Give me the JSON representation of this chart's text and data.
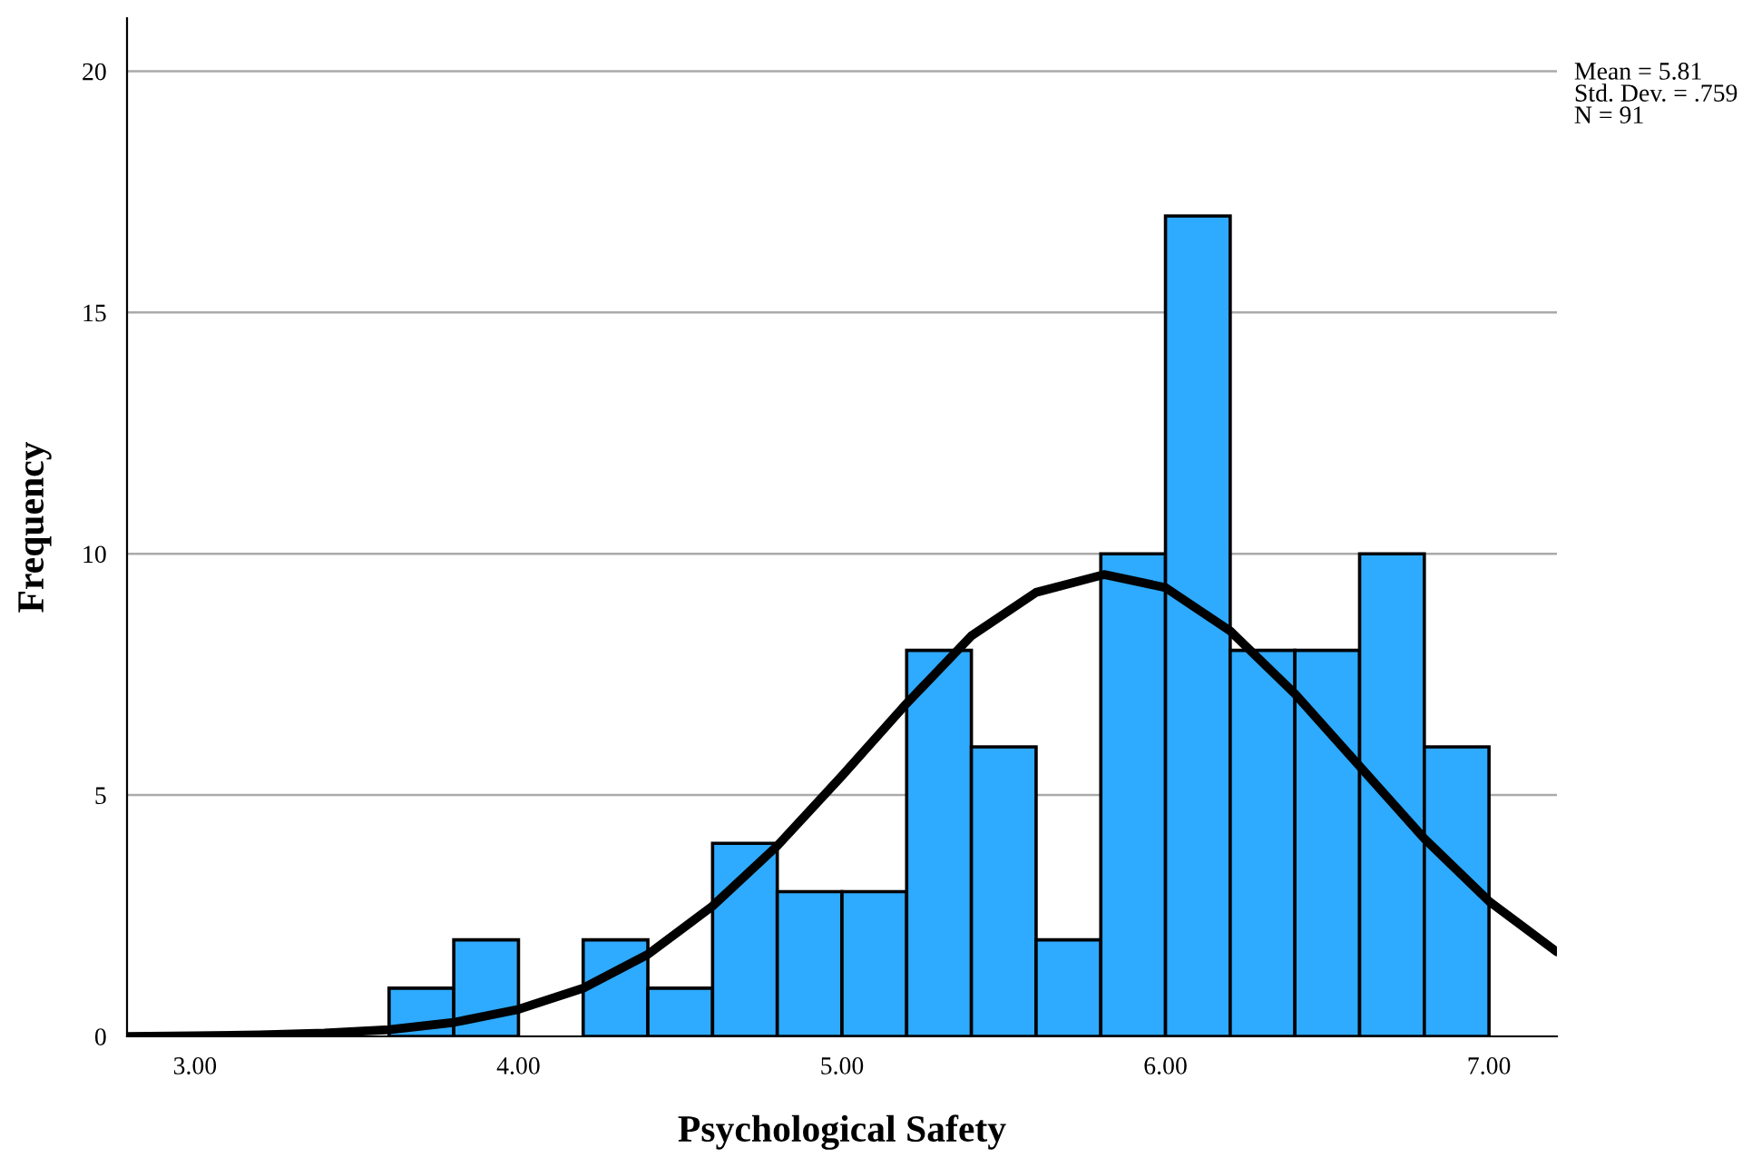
{
  "chart_data": {
    "type": "histogram",
    "xlabel": "Psychological Safety",
    "ylabel": "Frequency",
    "bins": [
      3.6,
      3.8,
      4.0,
      4.2,
      4.4,
      4.6,
      4.8,
      5.0,
      5.2,
      5.4,
      5.6,
      5.8,
      6.0,
      6.2,
      6.4,
      6.6,
      6.8,
      7.0
    ],
    "values": [
      1,
      2,
      0,
      2,
      1,
      4,
      3,
      3,
      8,
      6,
      2,
      10,
      17,
      8,
      8,
      10,
      6
    ],
    "color": "#2eaaff",
    "series": [
      {
        "type": "line",
        "color": "#000000",
        "x": [
          2.79,
          3.0,
          3.2,
          3.4,
          3.6,
          3.8,
          4.0,
          4.2,
          4.4,
          4.6,
          4.8,
          5.0,
          5.2,
          5.4,
          5.6,
          5.81,
          6.0,
          6.2,
          6.4,
          6.6,
          6.8,
          7.0,
          7.21
        ],
        "values": [
          0.0,
          0.01,
          0.03,
          0.07,
          0.14,
          0.29,
          0.56,
          1.0,
          1.7,
          2.7,
          3.95,
          5.4,
          6.9,
          8.3,
          9.2,
          9.57,
          9.3,
          8.4,
          7.1,
          5.6,
          4.1,
          2.8,
          1.75
        ]
      }
    ],
    "xlim": [
      2.79,
      7.21
    ],
    "ylim": [
      0,
      21.1
    ],
    "xticks": [
      {
        "value": 3,
        "label": "3.00"
      },
      {
        "value": 4,
        "label": "4.00"
      },
      {
        "value": 5,
        "label": "5.00"
      },
      {
        "value": 6,
        "label": "6.00"
      },
      {
        "value": 7,
        "label": "7.00"
      }
    ],
    "yticks": [
      0,
      5,
      10,
      15,
      20
    ],
    "grid": "y",
    "annotations": [
      "Mean = 5.81",
      "Std. Dev. = .759",
      "N = 91"
    ]
  }
}
